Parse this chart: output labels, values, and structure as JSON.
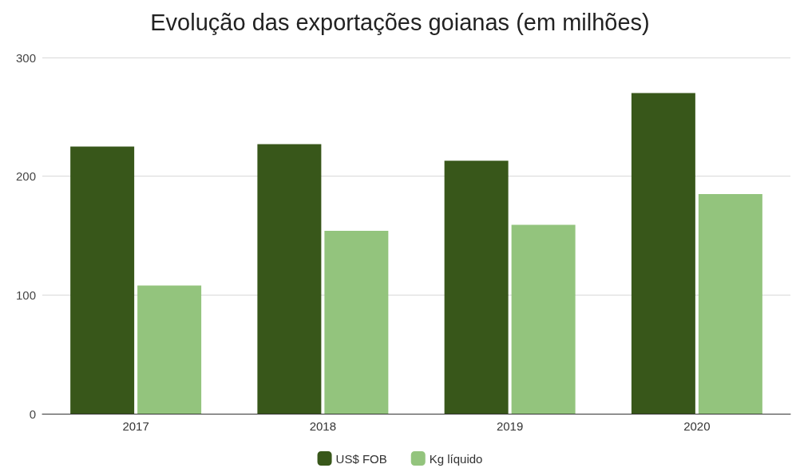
{
  "chart_data": {
    "type": "bar",
    "title": "Evolução das exportações goianas (em milhões)",
    "categories": [
      "2017",
      "2018",
      "2019",
      "2020"
    ],
    "series": [
      {
        "name": "US$ FOB",
        "color": "#38571a",
        "values": [
          225,
          227,
          213,
          270
        ]
      },
      {
        "name": "Kg líquido",
        "color": "#93c47d",
        "values": [
          108,
          154,
          159,
          185
        ]
      }
    ],
    "ylim": [
      0,
      300
    ],
    "yticks": [
      0,
      100,
      200,
      300
    ],
    "grid": "y",
    "legend": "bottom"
  }
}
